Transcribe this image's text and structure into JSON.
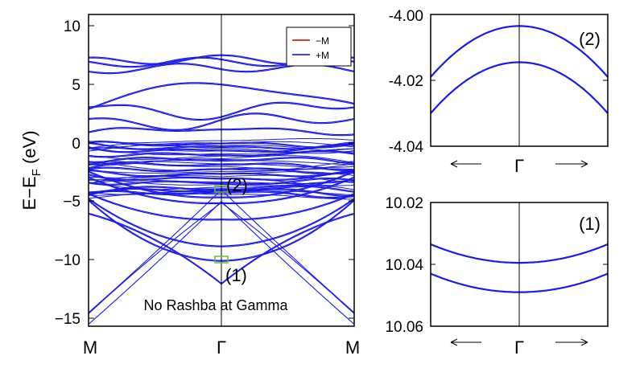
{
  "figure": {
    "main_panel": {
      "ylabel_base": "E−E",
      "ylabel_sub": "F",
      "ylabel_unit": " (eV)",
      "yticks": [
        "10",
        "5",
        "0",
        "−5",
        "−10",
        "−15"
      ],
      "xticks": [
        "M",
        "Γ",
        "M"
      ],
      "annotation": "No Rashba at Gamma",
      "box_labels": [
        "(2)",
        "(1)"
      ]
    },
    "inset_top": {
      "label": "(2)",
      "yticks": [
        "-4.00",
        "-4.02",
        "-4.04"
      ],
      "xlabel": "Γ"
    },
    "inset_bottom": {
      "label": "(1)",
      "yticks": [
        "10.02",
        "10.04",
        "10.06"
      ],
      "xlabel": "Γ"
    }
  },
  "legend": [
    {
      "label": "−M",
      "color": "#cc0000"
    },
    {
      "label": "+M",
      "color": "#0000ee"
    }
  ],
  "colors": {
    "bands": "#1a1aee",
    "highlight_box": "#66bb33",
    "gamma_line": "#000000"
  },
  "chart_data": [
    {
      "type": "line",
      "title": "",
      "xlabel": "",
      "ylabel": "E−EF (eV)",
      "x_ticks": [
        "M",
        "Γ",
        "M"
      ],
      "ylim": [
        -16,
        11
      ],
      "grid": false,
      "legend_position": "top-right",
      "series": [
        {
          "name": "−M",
          "color": "#cc0000"
        },
        {
          "name": "+M",
          "color": "#0000ee"
        }
      ],
      "band_energies_at_gamma": [
        7.2,
        7.0,
        6.5,
        5.0,
        2.8,
        1.8,
        1.2,
        0,
        -0.3,
        -0.6,
        -1.0,
        -1.4,
        -1.8,
        -2.2,
        -2.6,
        -3.0,
        -3.4,
        -3.9,
        -4.03,
        -4.2,
        -4.6,
        -5.1,
        -6.5,
        -8.8,
        -10.04,
        -12.0
      ],
      "annotations": [
        "No Rashba at Gamma",
        "(1)",
        "(2)"
      ]
    },
    {
      "type": "line",
      "title": "",
      "label": "(2)",
      "ylim": [
        -4.04,
        -4.0
      ],
      "x_ticks": [
        "Γ"
      ],
      "series": [
        {
          "name": "upper band",
          "x": [
            -1,
            -0.5,
            0,
            0.5,
            1
          ],
          "y": [
            -4.019,
            -4.0075,
            -4.0035,
            -4.0075,
            -4.019
          ]
        },
        {
          "name": "lower band",
          "x": [
            -1,
            -0.5,
            0,
            0.5,
            1
          ],
          "y": [
            -4.03,
            -4.0185,
            -4.0145,
            -4.0185,
            -4.03
          ]
        }
      ]
    },
    {
      "type": "line",
      "title": "",
      "label": "(1)",
      "ylim": [
        10.02,
        10.06
      ],
      "y_inverted": true,
      "x_ticks": [
        "Γ"
      ],
      "series": [
        {
          "name": "upper band",
          "x": [
            -1,
            -0.5,
            0,
            0.5,
            1
          ],
          "y": [
            10.0335,
            10.0385,
            10.0395,
            10.0385,
            10.0335
          ]
        },
        {
          "name": "lower band",
          "x": [
            -1,
            -0.5,
            0,
            0.5,
            1
          ],
          "y": [
            10.043,
            10.0475,
            10.049,
            10.0475,
            10.043
          ]
        }
      ]
    }
  ]
}
